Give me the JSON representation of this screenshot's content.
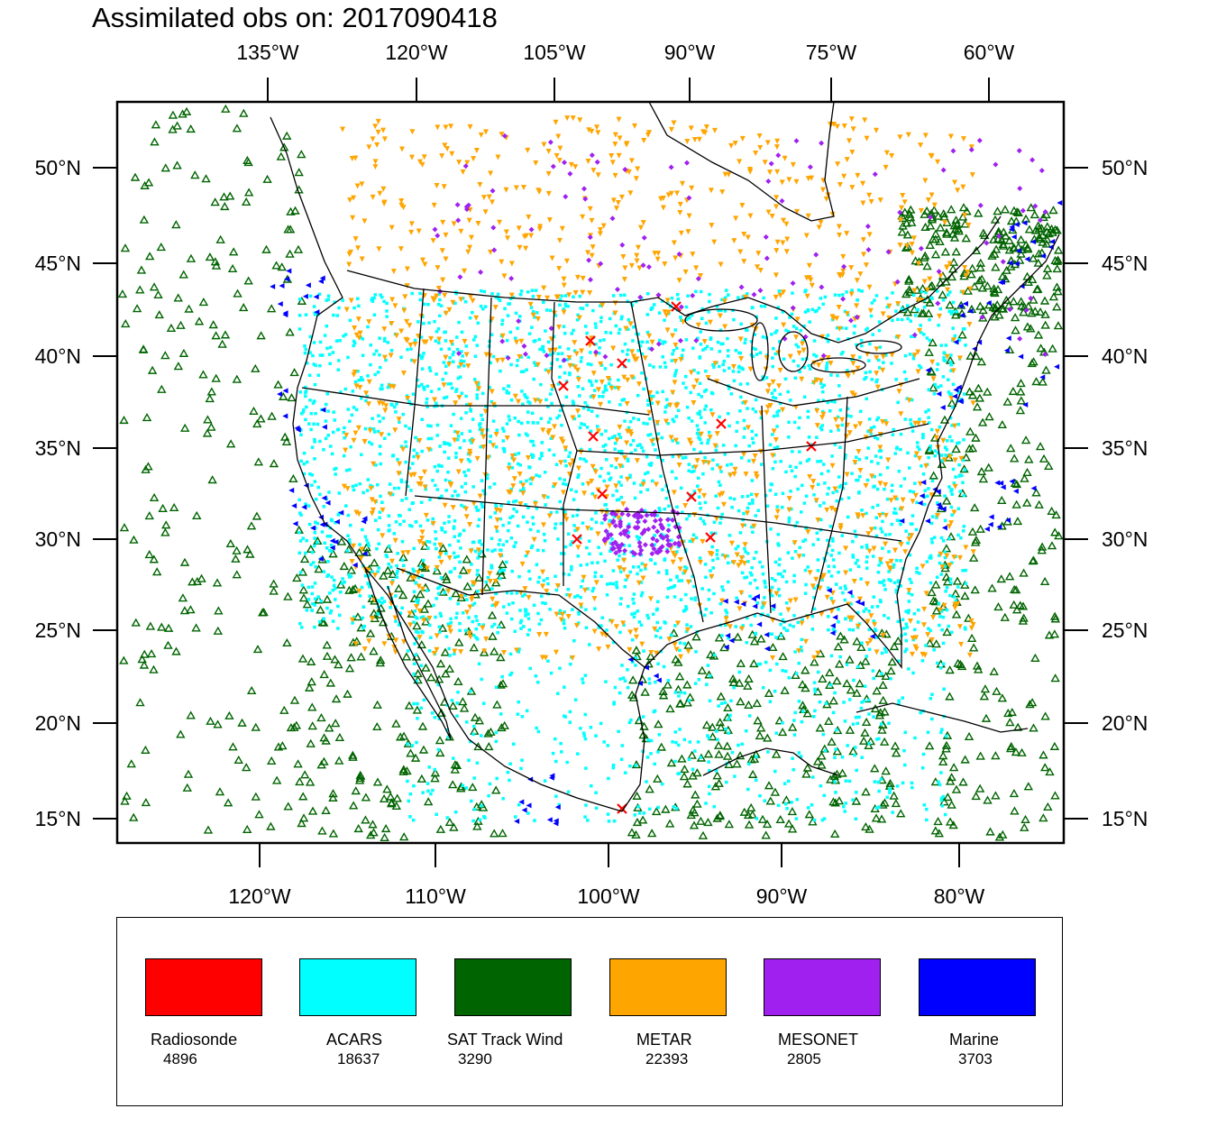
{
  "title": "Assimilated obs on: 2017090418",
  "axes": {
    "top_lon_labels": [
      "135°W",
      "120°W",
      "105°W",
      "90°W",
      "75°W",
      "60°W"
    ],
    "bottom_lon_labels": [
      "120°W",
      "110°W",
      "100°W",
      "90°W",
      "80°W"
    ],
    "lat_labels": [
      "50°N",
      "45°N",
      "40°N",
      "35°N",
      "30°N",
      "25°N",
      "20°N",
      "15°N"
    ]
  },
  "legend": [
    {
      "name": "Radiosonde",
      "count": "4896",
      "color": "#ff0000"
    },
    {
      "name": "ACARS",
      "count": "18637",
      "color": "#00ffff"
    },
    {
      "name": "SAT Track Wind",
      "count": "3290",
      "color": "#006400"
    },
    {
      "name": "METAR",
      "count": "22393",
      "color": "#ffa500"
    },
    {
      "name": "MESONET",
      "count": "2805",
      "color": "#a020f0"
    },
    {
      "name": "Marine",
      "count": "3703",
      "color": "#0000ff"
    }
  ]
}
